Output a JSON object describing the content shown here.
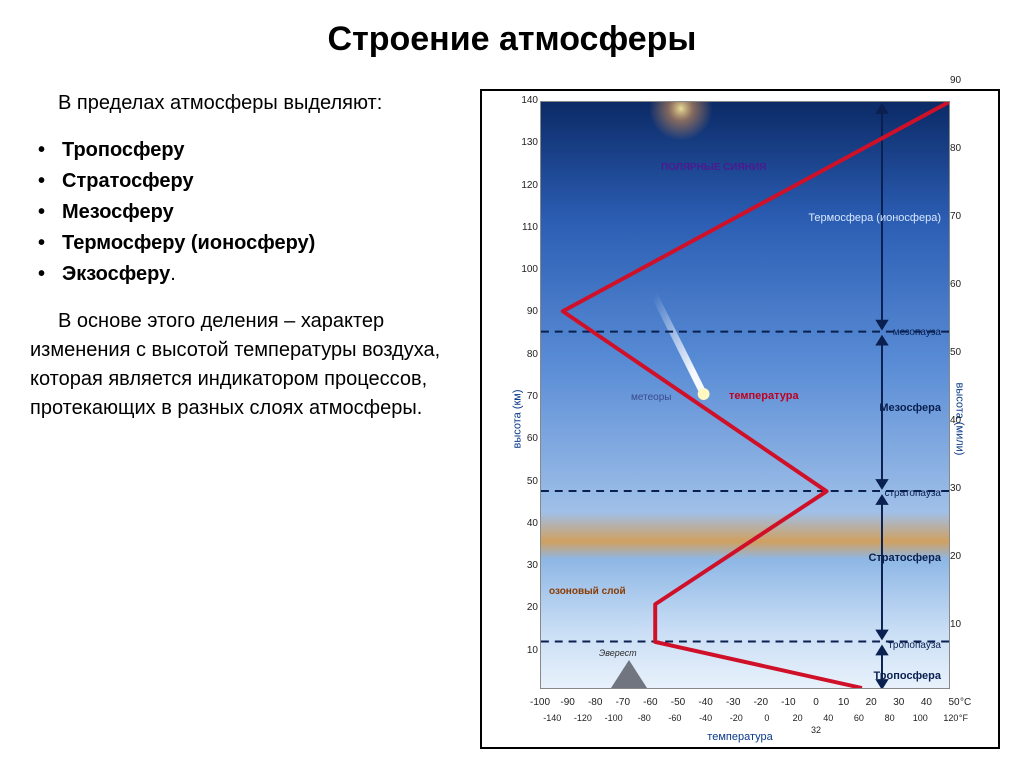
{
  "title": "Строение атмосферы",
  "intro": "В пределах атмосферы выделяют:",
  "layers_list": [
    "Тропосферу",
    "Стратосферу",
    "Мезосферу",
    "Термосферу (ионосферу)",
    "Экзосферу"
  ],
  "outro": "В основе этого деления – характер изменения с высотой температуры воздуха, которая является индикатором процессов, протекающих в разных слоях атмосферы.",
  "chart": {
    "type": "line",
    "background_gradient_colors": [
      "#0b2a66",
      "#2b5db3",
      "#5a8dd6",
      "#a0c0e8",
      "#d0a060",
      "#8eb7e5",
      "#c8ddf5",
      "#e8f1fb"
    ],
    "border_color": "#000000",
    "grid_color": "#e0e0e0",
    "temp_line_color": "#d01028",
    "temp_line_width": 4,
    "dashed_color": "#0a2050",
    "x_axis_c": {
      "label": "температура",
      "min": -100,
      "max": 50,
      "tick_step": 10,
      "fontsize": 10,
      "color": "#0a3a8a"
    },
    "x_axis_f": {
      "min": -140,
      "max": 120,
      "tick_step": 20,
      "label_32": "32"
    },
    "y_axis_km": {
      "label": "высота (км)",
      "min": 0,
      "max": 140,
      "tick_step": 10,
      "fontsize": 11,
      "color": "#0a3a8a"
    },
    "y_axis_mi": {
      "label": "высота (мили)",
      "min": 0,
      "max": 90,
      "tick_step": 10
    },
    "layers": [
      {
        "name": "Тропосфера",
        "top_km": 11,
        "label_right": true
      },
      {
        "name": "Стратосфера",
        "top_km": 47,
        "label_right": true
      },
      {
        "name": "Мезосфера",
        "top_km": 85,
        "label_right": true
      },
      {
        "name": "Термосфера (ионосфера)",
        "top_km": 140,
        "label_right": true,
        "color": "#d8e8ff"
      }
    ],
    "boundaries": [
      {
        "name": "тропопауза",
        "km": 11
      },
      {
        "name": "стратопауза",
        "km": 47
      },
      {
        "name": "мезопауза",
        "km": 85
      }
    ],
    "ozone": {
      "label": "озоновый слой",
      "km_low": 20,
      "km_high": 28,
      "color_low": "#d0a060",
      "color_high": "#e8c07a"
    },
    "temperature_profile": [
      {
        "temp_c": 18,
        "km": 0
      },
      {
        "temp_c": -58,
        "km": 11
      },
      {
        "temp_c": -58,
        "km": 20
      },
      {
        "temp_c": 5,
        "km": 47
      },
      {
        "temp_c": -92,
        "km": 90
      },
      {
        "temp_c": 50,
        "km": 140
      }
    ],
    "annotations": {
      "aurora": {
        "label": "ПОЛЯРНЫЕ СИЯНИЯ",
        "km": 122
      },
      "meteors": {
        "label": "метеоры",
        "km": 75
      },
      "temperature": {
        "label": "температура",
        "km": 72,
        "color": "#c00020"
      },
      "everest": {
        "label": "Эверест",
        "km": 3
      }
    }
  }
}
